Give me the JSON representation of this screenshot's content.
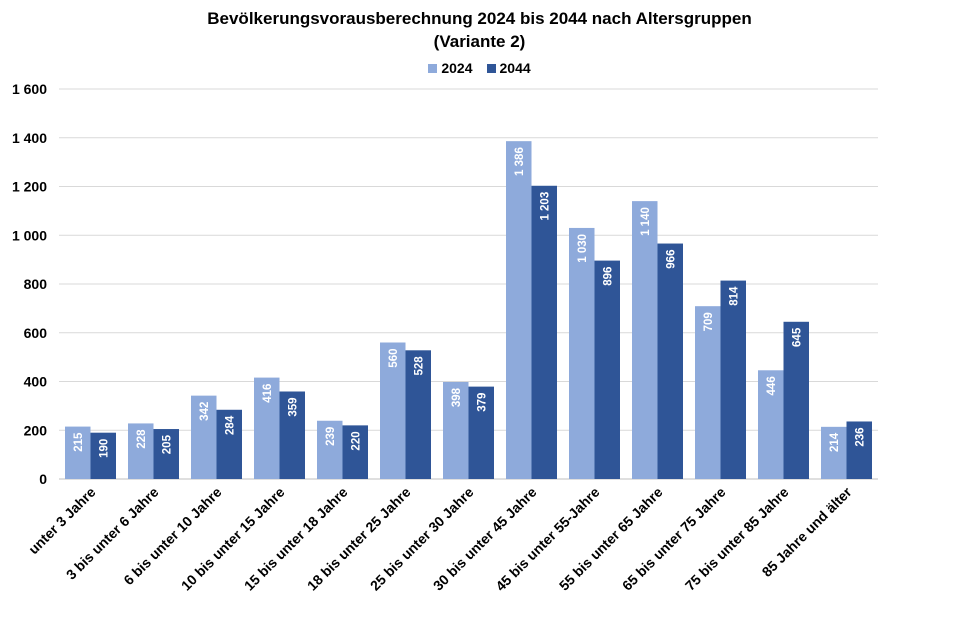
{
  "chart_data": {
    "type": "bar",
    "title": "Bevölkerungsvorausberechnung 2024 bis 2044 nach Altersgruppen",
    "subtitle": "(Variante 2)",
    "xlabel": "",
    "ylabel": "",
    "ylim": [
      0,
      1600
    ],
    "yticks": [
      0,
      200,
      400,
      600,
      800,
      1000,
      1200,
      1400,
      1600
    ],
    "ytick_labels": [
      "0",
      "200",
      "400",
      "600",
      "800",
      "1 000",
      "1 200",
      "1 400",
      "1 600"
    ],
    "grid": true,
    "legend_position": "top",
    "categories": [
      "unter 3 Jahre",
      "3 bis unter 6 Jahre",
      "6 bis unter 10 Jahre",
      "10 bis unter 15 Jahre",
      "15 bis unter 18 Jahre",
      "18 bis unter 25 Jahre",
      "25 bis unter 30 Jahre",
      "30 bis unter 45 Jahre",
      "45 bis unter 55-Jahre",
      "55 bis unter 65 Jahre",
      "65 bis unter 75 Jahre",
      "75 bis unter 85 Jahre",
      "85 Jahre und älter"
    ],
    "series": [
      {
        "name": "2024",
        "color": "#8eaadb",
        "values": [
          215,
          228,
          342,
          416,
          239,
          560,
          398,
          1386,
          1030,
          1140,
          709,
          446,
          214
        ],
        "labels": [
          "215",
          "228",
          "342",
          "416",
          "239",
          "560",
          "398",
          "1 386",
          "1 030",
          "1 140",
          "709",
          "446",
          "214"
        ]
      },
      {
        "name": "2044",
        "color": "#2f5597",
        "values": [
          190,
          205,
          284,
          359,
          220,
          528,
          379,
          1203,
          896,
          966,
          814,
          645,
          236
        ],
        "labels": [
          "190",
          "205",
          "284",
          "359",
          "220",
          "528",
          "379",
          "1 203",
          "896",
          "966",
          "814",
          "645",
          "236"
        ]
      }
    ]
  }
}
